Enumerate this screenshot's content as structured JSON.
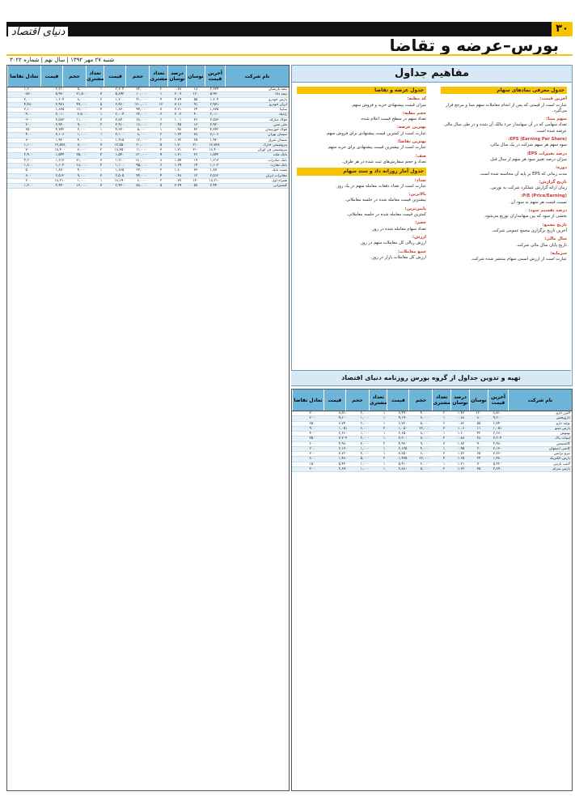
{
  "page": {
    "number": "۳۰",
    "logo": "دنیای اقتصاد",
    "title": "بورس–عرضه و تقاضا",
    "meta": "شنبه ۲۷ مهر ۱۳۹۲ | سال نهم | شماره ۳۰۲۲"
  },
  "concepts": {
    "title": "مفاهیم جداول",
    "footer": "تهیه و تدوین جداول از گروه بورس روزنامه دنیای اقتصاد",
    "right": [
      {
        "sect": "جدول معرفی نمادهای سهام"
      },
      {
        "term": "آخرین قیمت:",
        "def": "عبارت است از قیمتی که پس از انجام معاملات سهم مبنا و مرجع قرار می‌گیرد."
      },
      {
        "term": "سهم مبنا:",
        "def": "تعداد سهامی که در آن سهامدار جزء مالک آن شده و در طی سال مالی عرضه شده است."
      },
      {
        "term": "(Earning Per Share) EPS:",
        "def": "سود سهم هر سهم شرکت در یک سال مالی."
      },
      {
        "term": "درصد تغییرات EPS:",
        "def": "میزان درصد تغییر سود هر سهم از سال قبل."
      },
      {
        "term": "دوره:",
        "def": "مدت زمانی که EPS بر پایه آن محاسبه شده است."
      },
      {
        "term": "تاریخ گزارش:",
        "def": "زمان ارائه گزارش عملکرد شرکت به بورس."
      },
      {
        "term": "(Price/Earning) P/E:",
        "def": "نسبت قیمت هر سهم به سود آن."
      },
      {
        "term": "درصد تقسیم سود:",
        "def": "بخشی از سود که بین سهامداران توزیع می‌شود."
      },
      {
        "term": "تاریخ مجمع:",
        "def": "آخرین تاریخ برگزاری مجمع عمومی شرکت."
      },
      {
        "term": "سال مالی:",
        "def": "تاریخ پایان سال مالی شرکت."
      },
      {
        "term": "سرمایه:",
        "def": "عبارت است از ارزش اسمی سهام منتشر شده شرکت."
      }
    ],
    "left": [
      {
        "sect": "جدول عرضه و تقاضا"
      },
      {
        "term": "کد مظنه:",
        "def": "میزان قیمت پیشنهادی خرید و فروش سهم."
      },
      {
        "term": "حجم مظنه:",
        "def": "تعداد سهم در سطح قیمت اعلام شده."
      },
      {
        "term": "بهترین عرضه:",
        "def": "عبارت است از کمترین قیمت پیشنهادی برای فروش سهم."
      },
      {
        "term": "بهترین تقاضا:",
        "def": "عبارت است از بیشترین قیمت پیشنهادی برای خرید سهم."
      },
      {
        "term": "صف:",
        "def": "تعداد و حجم سفارش‌های ثبت شده در هر طرف."
      },
      {
        "sect": "جدول آمار روزانه داد و ستد سهام"
      },
      {
        "term": "تعداد:",
        "def": "عبارت است از تعداد دفعات معامله سهم در یک روز."
      },
      {
        "term": "بالاترین:",
        "def": "بیشترین قیمت معامله شده در جلسه معاملاتی."
      },
      {
        "term": "پایین‌ترین:",
        "def": "کمترین قیمت معامله شده در جلسه معاملاتی."
      },
      {
        "term": "حجم:",
        "def": "تعداد سهام معامله شده در روز."
      },
      {
        "term": "ارزش:",
        "def": "ارزش ریالی کل معاملات سهم در روز."
      },
      {
        "term": "جمع معاملات:",
        "def": "ارزش کل معاملات بازار در روز."
      }
    ]
  },
  "table_headers": [
    "نام شرکت",
    "آخرین قیمت",
    "نوسان",
    "درصد نوسان",
    "تعداد مشتری",
    "حجم",
    "قیمت",
    "تعداد مشتری",
    "حجم",
    "قیمت",
    "تعادل تقاضا"
  ],
  "left_table": {
    "rows": [
      [
        "بیمه پارسیان",
        "۲,۳۲۴",
        "۱۸",
        "۰.۷۸",
        "۲",
        "۳۲,۰۰۰",
        "۲,۳۰۴",
        "۱",
        "۵,۰۰۰",
        "۲,۳۱۰",
        "۱,۲۰۰"
      ],
      [
        "بیمه دانا",
        "۵,۹۳۰",
        "۱۲۰",
        "۲.۰۷",
        "۱",
        "۱۰,۰۰۰",
        "۵,۸۹۲",
        "۳",
        "۲۱,۵۰۰",
        "۵,۹۳۰",
        "-۵۶۰"
      ],
      [
        "پارس خودرو",
        "۱,۲۰۴",
        "۵۵",
        "۴.۷۹",
        "۴",
        "۴۱,۰۰۰",
        "۱,۲۰۰",
        "۲",
        "۸,۰۰۰",
        "۱,۲۰۴",
        "۳,۰۰۰"
      ],
      [
        "ایران خودرو",
        "۲,۹۷۱",
        "۹۱",
        "۳.۱۶",
        "۱۲",
        "۲۱۰,۰۰۰",
        "۲,۹۶۰",
        "۵",
        "۴۹,۰۰۰",
        "۲,۹۷۱",
        "۴,۴۸۰"
      ],
      [
        "سایپا",
        "۱,۸۳۵",
        "۶۴",
        "۳.۶۱",
        "۷",
        "۹۴,۰۰۰",
        "۱,۸۳۰",
        "۴",
        "۱۶,۰۰۰",
        "۱,۸۳۵",
        "۲,۱۰۰"
      ],
      [
        "زامیاد",
        "۲,۰۱۰",
        "۴۰",
        "۲.۰۳",
        "۳",
        "۲۲,۰۰۰",
        "۲,۰۰۴",
        "۱",
        "۳,۵۰۰",
        "۲,۰۱۰",
        "۹۰۰"
      ],
      [
        "فولاد مبارکه",
        "۳,۵۸۳",
        "۳۶",
        "۱.۰۱",
        "۶",
        "۶۸,۰۰۰",
        "۳,۵۷۰",
        "۳",
        "۱۱,۰۰۰",
        "۳,۵۸۳",
        "-۳۰۰"
      ],
      [
        "ملی مس",
        "۲,۹۲۰",
        "۱۳",
        "۰.۴۵",
        "۲",
        "۱۶,۰۰۰",
        "۲,۹۱۰",
        "۲",
        "۹,۰۰۰",
        "۲,۹۲۰",
        "۶۰۰"
      ],
      [
        "فولاد خوزستان",
        "۴,۳۴۲",
        "۴۲",
        "۰.۹۸",
        "۱",
        "۵,۰۰۰",
        "۴,۳۳۰",
        "۱",
        "۲,۰۰۰",
        "۴,۳۴۲",
        "۲۵۰"
      ],
      [
        "سیمان تهران",
        "۳,۱۰۶",
        "۳۸",
        "۱.۲۴",
        "۲",
        "۸,۰۰۰",
        "۳,۱۰۰",
        "۱",
        "۱,۰۰۰",
        "۳,۱۰۶",
        "۴۰۰"
      ],
      [
        "سیمان شرق",
        "۱,۹۲۰",
        "۲۵",
        "۱.۳۲",
        "۲",
        "۱۲,۰۰۰",
        "۱,۹۱۵",
        "۱",
        "۴,۰۰۰",
        "۱,۹۲۰",
        "۳۰۰"
      ],
      [
        "پتروشیمی خارک",
        "۱۲,۵۷۸",
        "۲۱۰",
        "۱.۷۰",
        "۵",
        "۲۰,۰۰۰",
        "۱۲,۵۵۰",
        "۳",
        "۷,۰۰۰",
        "۱۲,۵۷۸",
        "۱,۱۰۰"
      ],
      [
        "پتروشیمی فن آوران",
        "۱۸,۴۰۰",
        "۳۱۰",
        "۱.۷۱",
        "۳",
        "۱۱,۰۰۰",
        "۱۸,۳۵۰",
        "۲",
        "۳,۰۰۰",
        "۱۸,۴۰۰",
        "۷۰۰"
      ],
      [
        "بانک ملت",
        "۱,۵۴۴",
        "۲۶",
        "۱.۷۱",
        "۹",
        "۱۲۰,۰۰۰",
        "۱,۵۴۰",
        "۴",
        "۳۵,۰۰۰",
        "۱,۵۴۴",
        "۲,۹۰۰"
      ],
      [
        "بانک صادرات",
        "۱,۲۱۳",
        "۱۹",
        "۱.۵۹",
        "۸",
        "۱۸۰,۰۰۰",
        "۱,۲۱۰",
        "۳",
        "۲۱,۰۰۰",
        "۱,۲۱۳",
        "۴,۲۰۰"
      ],
      [
        "بانک تجارت",
        "۱,۱۰۲",
        "۱۴",
        "۱.۲۹",
        "۶",
        "۹۵,۰۰۰",
        "۱,۱۰۰",
        "۲",
        "۱۸,۰۰۰",
        "۱,۱۰۲",
        "۱,۸۰۰"
      ],
      [
        "پست بانک",
        "۱,۸۷۰",
        "۳۳",
        "۱.۸۰",
        "۲",
        "۲۲,۰۰۰",
        "۱,۸۶۵",
        "۱",
        "۴,۰۰۰",
        "۱,۸۷۰",
        "۵۰۰"
      ],
      [
        "مخابرات ایران",
        "۲,۵۱۲",
        "۱۲",
        "۰.۴۸",
        "۴",
        "۴۴,۰۰۰",
        "۲,۵۰۵",
        "۲",
        "۹,۰۰۰",
        "۲,۵۱۲",
        "۸۰۰"
      ],
      [
        "همراه اول",
        "۱۸,۲۱۰",
        "۱۴۰",
        "۰.۷۷",
        "۲",
        "۶,۰۰۰",
        "۱۸,۱۹۰",
        "۱",
        "۱,۰۰۰",
        "۱۸,۲۱۰",
        "۲۰۰"
      ],
      [
        "کشتیرانی",
        "۲,۴۴۰",
        "۵۷",
        "۲.۳۹",
        "۵",
        "۵۸,۰۰۰",
        "۲,۴۳۰",
        "۳",
        "۱۲,۰۰۰",
        "۲,۴۴۰",
        "۱,۳۰۰"
      ]
    ]
  },
  "right_table": {
    "rows": [
      [
        "البرز دارو",
        "۸,۵۱۰",
        "۱۲۰",
        "۱.۴۳",
        "۲",
        "۴,۰۰۰",
        "۸,۴۹۰",
        "۱",
        "۲,۰۰۰",
        "۸,۵۱۰",
        "۳۰۰"
      ],
      [
        "داروپخش",
        "۹,۲۰۰",
        "۸۰",
        "۰.۸۸",
        "۱",
        "۳,۰۰۰",
        "۹,۱۹۰",
        "۱",
        "۱,۰۰۰",
        "۹,۲۰۰",
        "۲۰۰"
      ],
      [
        "تولید دارو",
        "۶,۷۴۰",
        "۵۵",
        "۰.۸۲",
        "۲",
        "۵,۰۰۰",
        "۶,۷۳۰",
        "۱",
        "۲,۰۰۰",
        "۶,۷۴۰",
        "۲۵۰"
      ],
      [
        "پارس مینو",
        "۱,۰۵۱",
        "۱۱",
        "۱.۰۶",
        "۳",
        "۲۲,۰۰۰",
        "۱,۰۵۰",
        "۲",
        "۶,۰۰۰",
        "۱,۰۵۱",
        "۹۰۰"
      ],
      [
        "بهنوش",
        "۲,۶۶۰",
        "۴۲",
        "۱.۶۰",
        "۱",
        "۸,۰۰۰",
        "۲,۶۵۰",
        "۱",
        "۱,۰۰۰",
        "۲,۶۶۰",
        "۴۰۰"
      ],
      [
        "لبنیات پاک",
        "۳,۲۰۴",
        "۲۸",
        "۰.۸۸",
        "۲",
        "۷,۰۰۰",
        "۳,۲۰۰",
        "۱",
        "۲,۰۰۰",
        "۳,۲۰۴",
        "۳۵۰"
      ],
      [
        "کالسیمین",
        "۴,۹۸۰",
        "۹۰",
        "۱.۸۴",
        "۳",
        "۹,۰۰۰",
        "۴,۹۷۰",
        "۲",
        "۳,۰۰۰",
        "۴,۹۸۰",
        "۶۰۰"
      ],
      [
        "کاشی اصفهان",
        "۲,۱۳۰",
        "۲۰",
        "۰.۹۵",
        "۱",
        "۴,۰۰۰",
        "۲,۱۲۵",
        "۱",
        "۱,۰۰۰",
        "۲,۱۳۰",
        "۲۰۰"
      ],
      [
        "نیرو ترانس",
        "۳,۷۶۰",
        "۶۵",
        "۱.۷۶",
        "۲",
        "۶,۰۰۰",
        "۳,۷۵۰",
        "۱",
        "۲,۰۰۰",
        "۳,۷۶۰",
        "۳۰۰"
      ],
      [
        "پارس الکتریک",
        "۱,۴۸۰",
        "۲۴",
        "۱.۶۵",
        "۴",
        "۲۶,۰۰۰",
        "۱,۴۷۵",
        "۲",
        "۵,۰۰۰",
        "۱,۴۸۰",
        "۸۰۰"
      ],
      [
        "لامپ پارس",
        "۵,۴۲۰",
        "۷۰",
        "۱.۳۱",
        "۱",
        "۲,۰۰۰",
        "۵,۴۱۰",
        "۱",
        "۱,۰۰۰",
        "۵,۴۲۰",
        "۱۵۰"
      ],
      [
        "پارس سرام",
        "۲,۸۹۰",
        "۳۵",
        "۱.۲۳",
        "۲",
        "۵,۰۰۰",
        "۲,۸۸۰",
        "۱",
        "۱,۰۰۰",
        "۲,۸۹۰",
        "۳۰۰"
      ]
    ]
  }
}
